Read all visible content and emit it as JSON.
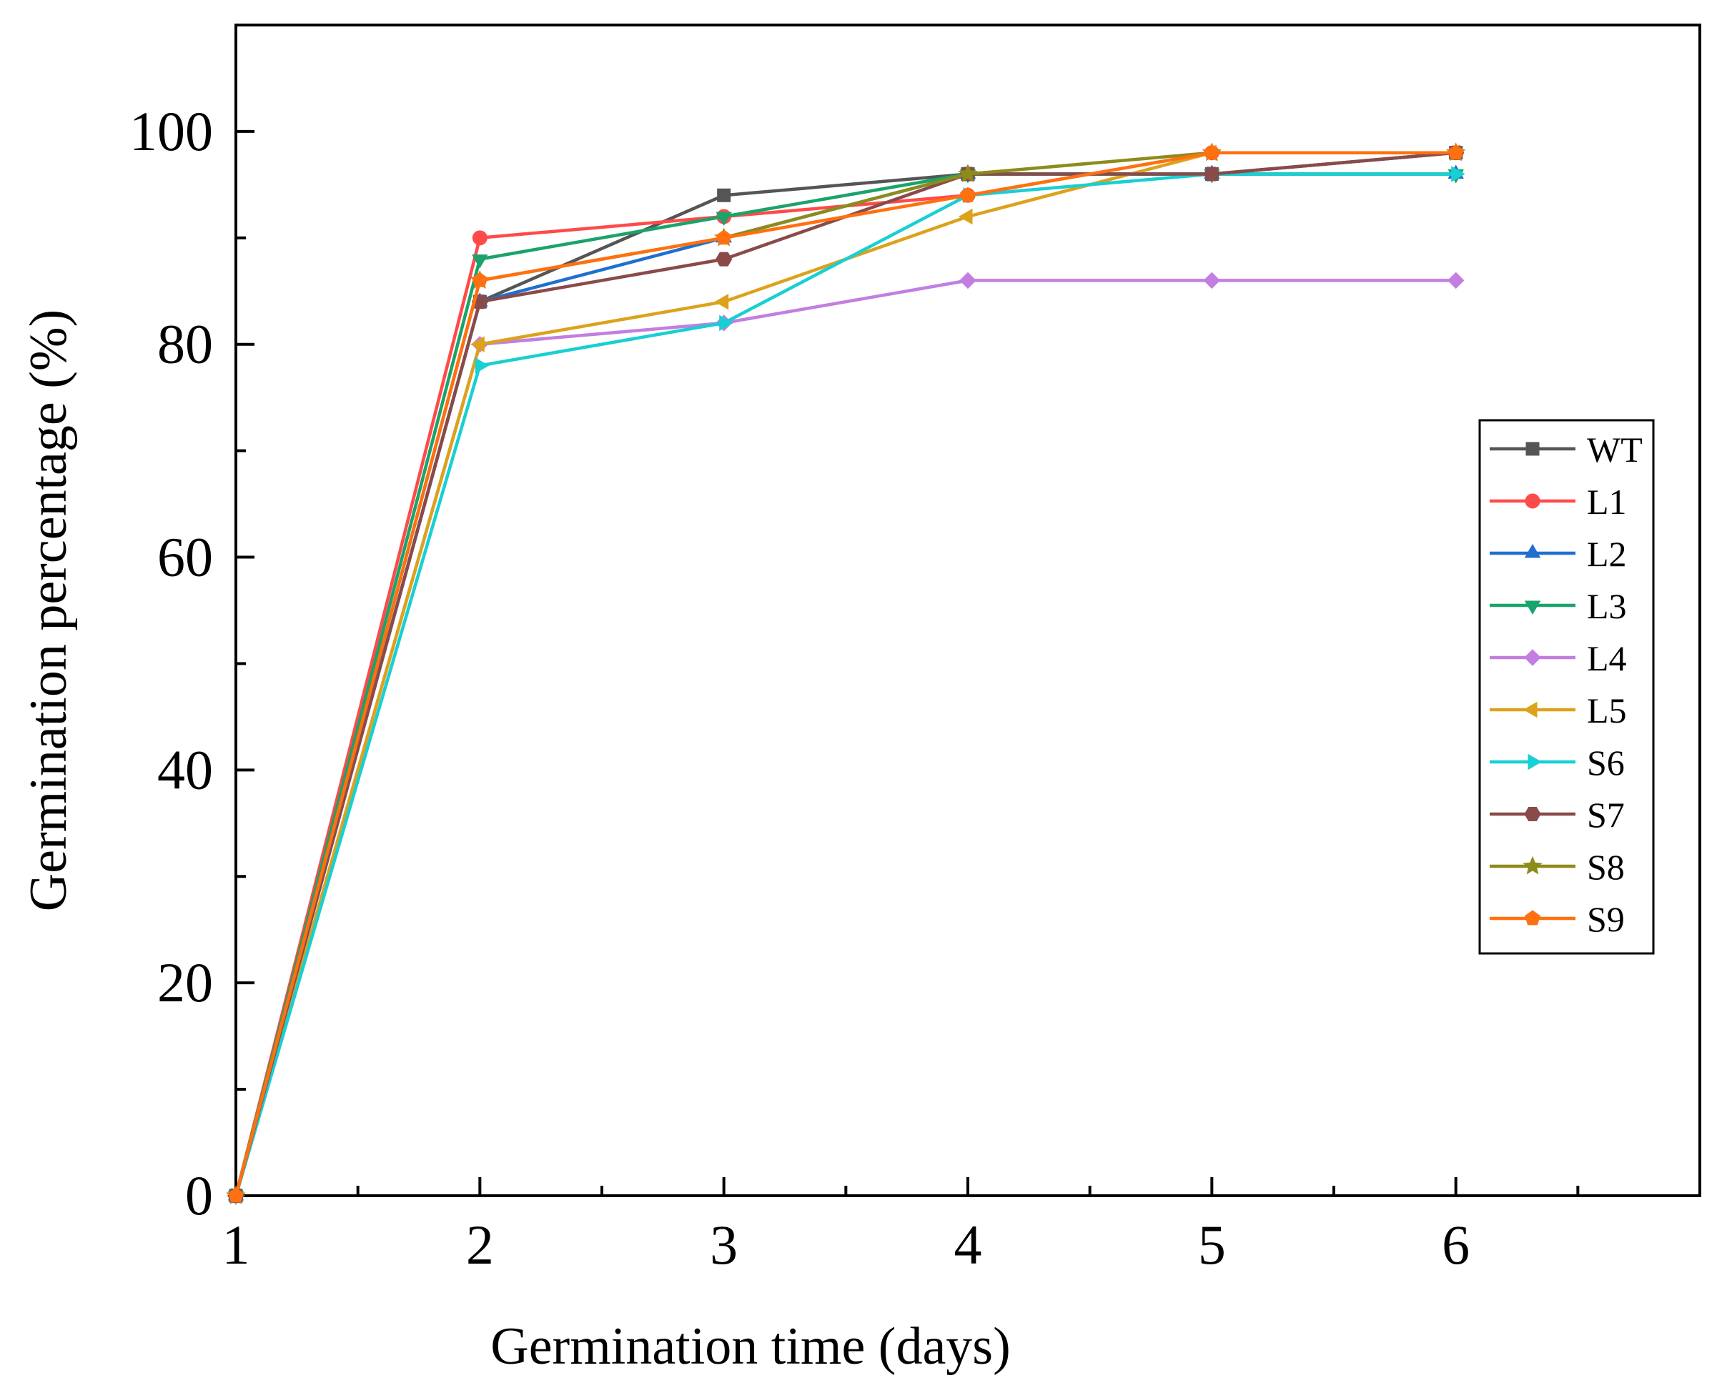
{
  "chart_data": {
    "type": "line",
    "title": "",
    "xlabel": "Germination time (days)",
    "ylabel": "Germination percentage (%)",
    "xlim": [
      1,
      7
    ],
    "ylim": [
      0,
      110
    ],
    "x_ticks": [
      "1",
      "2",
      "3",
      "4",
      "5",
      "6"
    ],
    "y_ticks": [
      "0",
      "20",
      "40",
      "60",
      "80",
      "100"
    ],
    "grid": false,
    "legend_position": "right",
    "x": [
      1,
      2,
      3,
      4,
      5,
      6
    ],
    "series": [
      {
        "name": "WT",
        "color": "#555555",
        "marker": "square",
        "values": [
          0,
          84,
          94,
          96,
          96,
          98
        ]
      },
      {
        "name": "L1",
        "color": "#ff4a4a",
        "marker": "circle",
        "values": [
          0,
          90,
          92,
          94,
          98,
          98
        ]
      },
      {
        "name": "L2",
        "color": "#1f6fd1",
        "marker": "triangle-up",
        "values": [
          0,
          84,
          90,
          96,
          96,
          96
        ]
      },
      {
        "name": "L3",
        "color": "#1aa36a",
        "marker": "triangle-down",
        "values": [
          0,
          88,
          92,
          96,
          96,
          96
        ]
      },
      {
        "name": "L4",
        "color": "#c27ee0",
        "marker": "diamond",
        "values": [
          0,
          80,
          82,
          86,
          86,
          86
        ]
      },
      {
        "name": "L5",
        "color": "#dca21c",
        "marker": "triangle-left",
        "values": [
          0,
          80,
          84,
          92,
          98,
          98
        ]
      },
      {
        "name": "S6",
        "color": "#18cfd3",
        "marker": "triangle-right",
        "values": [
          0,
          78,
          82,
          94,
          96,
          96
        ]
      },
      {
        "name": "S7",
        "color": "#8a4a4a",
        "marker": "hexagon",
        "values": [
          0,
          84,
          88,
          96,
          96,
          98
        ]
      },
      {
        "name": "S8",
        "color": "#8c8c1a",
        "marker": "star",
        "values": [
          0,
          86,
          90,
          96,
          98,
          98
        ]
      },
      {
        "name": "S9",
        "color": "#ff7010",
        "marker": "pentagon",
        "values": [
          0,
          86,
          90,
          94,
          98,
          98
        ]
      }
    ]
  }
}
